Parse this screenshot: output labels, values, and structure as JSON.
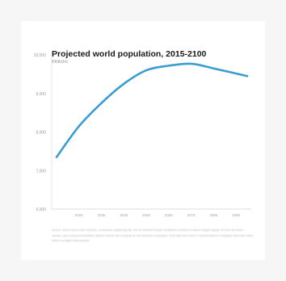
{
  "chart_data": {
    "type": "line",
    "title": "Projected world population, 2015-2100",
    "subtitle": "Millions",
    "xlabel": "",
    "ylabel": "",
    "x": [
      2015,
      2025,
      2035,
      2045,
      2055,
      2065,
      2075,
      2085,
      2100
    ],
    "x_ticks": [
      "2025",
      "2035",
      "2045",
      "2055",
      "2065",
      "2075",
      "2085",
      "2095"
    ],
    "y_ticks": [
      "6,000",
      "7,000",
      "8,000",
      "9,000",
      "10,000"
    ],
    "ylim": [
      6000,
      10000
    ],
    "xlim": [
      2015,
      2100
    ],
    "series": [
      {
        "values": [
          7350,
          8150,
          8750,
          9250,
          9600,
          9720,
          9770,
          9650,
          9450
        ]
      }
    ],
    "grid": false,
    "line_color": "#3a9dd1"
  },
  "source_note": "Source: lorem ipsum dolor sit amet, consectetur adipiscing elit, sed do eiusmod tempor incididunt ut labore et dolore magna aliqua. Ut enim ad minim veniam, quis nostrud exercitation ullamco laboris nisi ut aliquip ex ea commodo consequat. Duis aute irure dolor in reprehenderit in voluptate velit esse cillum dolore eu fugiat nulla pariatur."
}
